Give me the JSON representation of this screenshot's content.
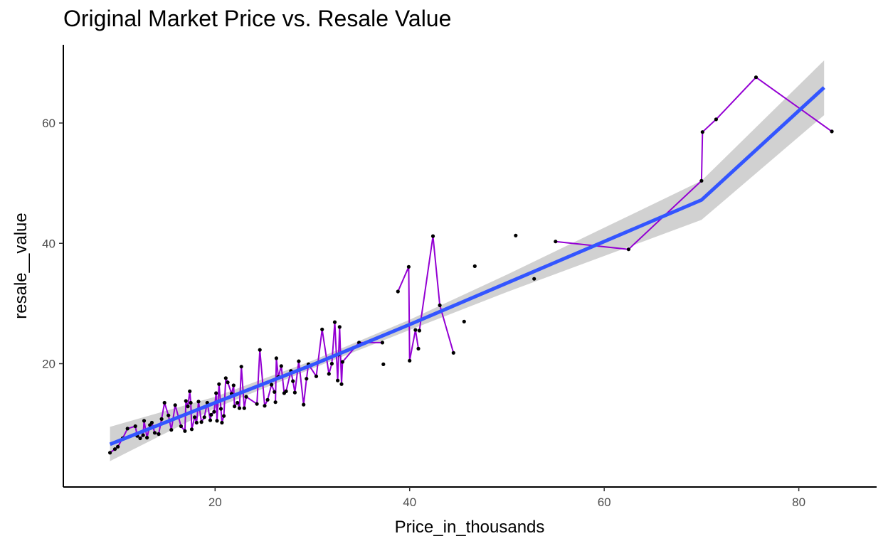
{
  "chart_data": {
    "type": "scatter",
    "title": "Original Market Price vs. Resale Value",
    "xlabel": "Price_in_thousands",
    "ylabel": "resale__value",
    "xlim": [
      4.4,
      88
    ],
    "ylim": [
      -0.5,
      73
    ],
    "x_ticks": [
      20,
      40,
      60,
      80
    ],
    "y_ticks": [
      20,
      40,
      60
    ],
    "grid": false,
    "legend": "none",
    "colors": {
      "points": "#000000",
      "path": "#9400D3",
      "fit": "#3355FF",
      "band": "#CCCCCC"
    },
    "fit": {
      "method": "linear",
      "x": [
        9.2,
        20,
        30,
        40,
        50,
        60,
        70,
        82.6
      ],
      "y": [
        6.6,
        13.5,
        19.8,
        26.5,
        33.4,
        40.3,
        47.2,
        65.9
      ],
      "lower": [
        3.8,
        12.6,
        19.2,
        25.6,
        31.9,
        37.9,
        43.9,
        61.3
      ],
      "upper": [
        9.5,
        14.5,
        20.5,
        27.3,
        34.8,
        42.6,
        50.4,
        70.4
      ]
    },
    "points": [
      [
        9.2,
        5.2
      ],
      [
        9.7,
        5.8
      ],
      [
        10.0,
        6.2
      ],
      [
        10.5,
        7.6
      ],
      [
        11.0,
        9.2
      ],
      [
        11.8,
        9.6
      ],
      [
        12.0,
        8.0
      ],
      [
        12.3,
        7.6
      ],
      [
        12.6,
        8.1
      ],
      [
        12.7,
        10.5
      ],
      [
        13.0,
        7.7
      ],
      [
        13.3,
        9.8
      ],
      [
        13.5,
        10.2
      ],
      [
        13.8,
        8.5
      ],
      [
        14.2,
        8.3
      ],
      [
        14.5,
        10.8
      ],
      [
        14.8,
        13.5
      ],
      [
        15.2,
        11.4
      ],
      [
        15.5,
        9.0
      ],
      [
        15.9,
        13.1
      ],
      [
        16.5,
        9.6
      ],
      [
        16.9,
        8.8
      ],
      [
        17.0,
        13.8
      ],
      [
        17.2,
        12.9
      ],
      [
        17.4,
        15.4
      ],
      [
        17.5,
        13.5
      ],
      [
        17.6,
        9.1
      ],
      [
        17.9,
        11.1
      ],
      [
        18.1,
        10.2
      ],
      [
        18.3,
        13.7
      ],
      [
        18.6,
        10.3
      ],
      [
        18.9,
        11.1
      ],
      [
        19.2,
        13.5
      ],
      [
        19.5,
        10.6
      ],
      [
        19.6,
        11.5
      ],
      [
        19.9,
        12.0
      ],
      [
        20.1,
        15.1
      ],
      [
        20.2,
        10.5
      ],
      [
        20.4,
        16.6
      ],
      [
        20.6,
        12.5
      ],
      [
        20.7,
        10.2
      ],
      [
        20.9,
        11.3
      ],
      [
        21.1,
        17.6
      ],
      [
        21.3,
        16.9
      ],
      [
        21.7,
        15.0
      ],
      [
        21.9,
        16.4
      ],
      [
        22.0,
        12.9
      ],
      [
        22.3,
        13.5
      ],
      [
        22.5,
        12.6
      ],
      [
        22.7,
        19.5
      ],
      [
        23.0,
        12.6
      ],
      [
        23.2,
        14.5
      ],
      [
        24.3,
        13.3
      ],
      [
        24.6,
        22.3
      ],
      [
        25.1,
        13.0
      ],
      [
        25.4,
        14.0
      ],
      [
        25.8,
        16.5
      ],
      [
        26.1,
        15.3
      ],
      [
        26.2,
        13.6
      ],
      [
        26.3,
        20.9
      ],
      [
        26.5,
        17.8
      ],
      [
        26.8,
        19.6
      ],
      [
        27.1,
        15.1
      ],
      [
        27.3,
        15.4
      ],
      [
        27.8,
        18.8
      ],
      [
        28.0,
        17.1
      ],
      [
        28.2,
        15.2
      ],
      [
        28.6,
        20.4
      ],
      [
        29.1,
        13.2
      ],
      [
        29.4,
        17.5
      ],
      [
        29.6,
        19.9
      ],
      [
        30.4,
        17.9
      ],
      [
        31.0,
        25.7
      ],
      [
        31.7,
        18.3
      ],
      [
        32.0,
        20.0
      ],
      [
        32.3,
        26.9
      ],
      [
        32.6,
        17.2
      ],
      [
        32.7,
        21.5
      ],
      [
        32.8,
        26.1
      ],
      [
        33.0,
        16.6
      ],
      [
        33.1,
        20.3
      ],
      [
        34.8,
        23.5
      ],
      [
        37.2,
        23.5
      ],
      [
        37.3,
        19.9
      ],
      [
        38.8,
        32.0
      ],
      [
        39.9,
        36.1
      ],
      [
        40.0,
        20.5
      ],
      [
        40.6,
        25.6
      ],
      [
        40.9,
        22.5
      ],
      [
        41.0,
        25.5
      ],
      [
        42.4,
        41.2
      ],
      [
        43.1,
        29.7
      ],
      [
        44.5,
        21.8
      ],
      [
        45.6,
        27.0
      ],
      [
        46.7,
        36.2
      ],
      [
        50.9,
        41.3
      ],
      [
        52.8,
        34.1
      ],
      [
        55.0,
        40.3
      ],
      [
        62.5,
        39.0
      ],
      [
        70.0,
        50.4
      ],
      [
        70.1,
        58.5
      ],
      [
        71.5,
        60.6
      ],
      [
        75.6,
        67.6
      ],
      [
        83.4,
        58.6
      ]
    ],
    "path_breaks": [
      58,
      83,
      84,
      89,
      93,
      94,
      95,
      96,
      97
    ]
  }
}
